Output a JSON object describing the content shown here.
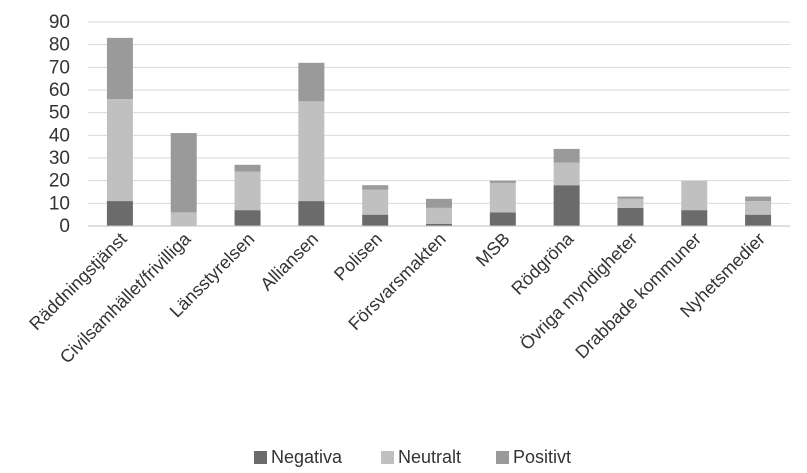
{
  "chart_data": {
    "type": "bar",
    "stacked": true,
    "categories": [
      "Räddningstjänst",
      "Civilsamhället/frivilliga",
      "Länsstyrelsen",
      "Alliansen",
      "Polisen",
      "Försvarsmakten",
      "MSB",
      "Rödgröna",
      "Övriga myndigheter",
      "Drabbade kommuner",
      "Nyhetsmedier"
    ],
    "series": [
      {
        "name": "Negativa",
        "color": "#6b6b6b",
        "values": [
          11,
          0,
          7,
          11,
          5,
          1,
          6,
          18,
          8,
          7,
          5
        ]
      },
      {
        "name": "Neutralt",
        "color": "#c0c0c0",
        "values": [
          45,
          6,
          17,
          44,
          11,
          7,
          13,
          10,
          4,
          13,
          6
        ]
      },
      {
        "name": "Positivt",
        "color": "#9a9a9a",
        "values": [
          27,
          35,
          3,
          17,
          2,
          4,
          1,
          6,
          1,
          0,
          2
        ]
      }
    ],
    "ylim": [
      0,
      90
    ],
    "yticks": [
      0,
      10,
      20,
      30,
      40,
      50,
      60,
      70,
      80,
      90
    ],
    "grid": true,
    "legend_position": "bottom"
  }
}
